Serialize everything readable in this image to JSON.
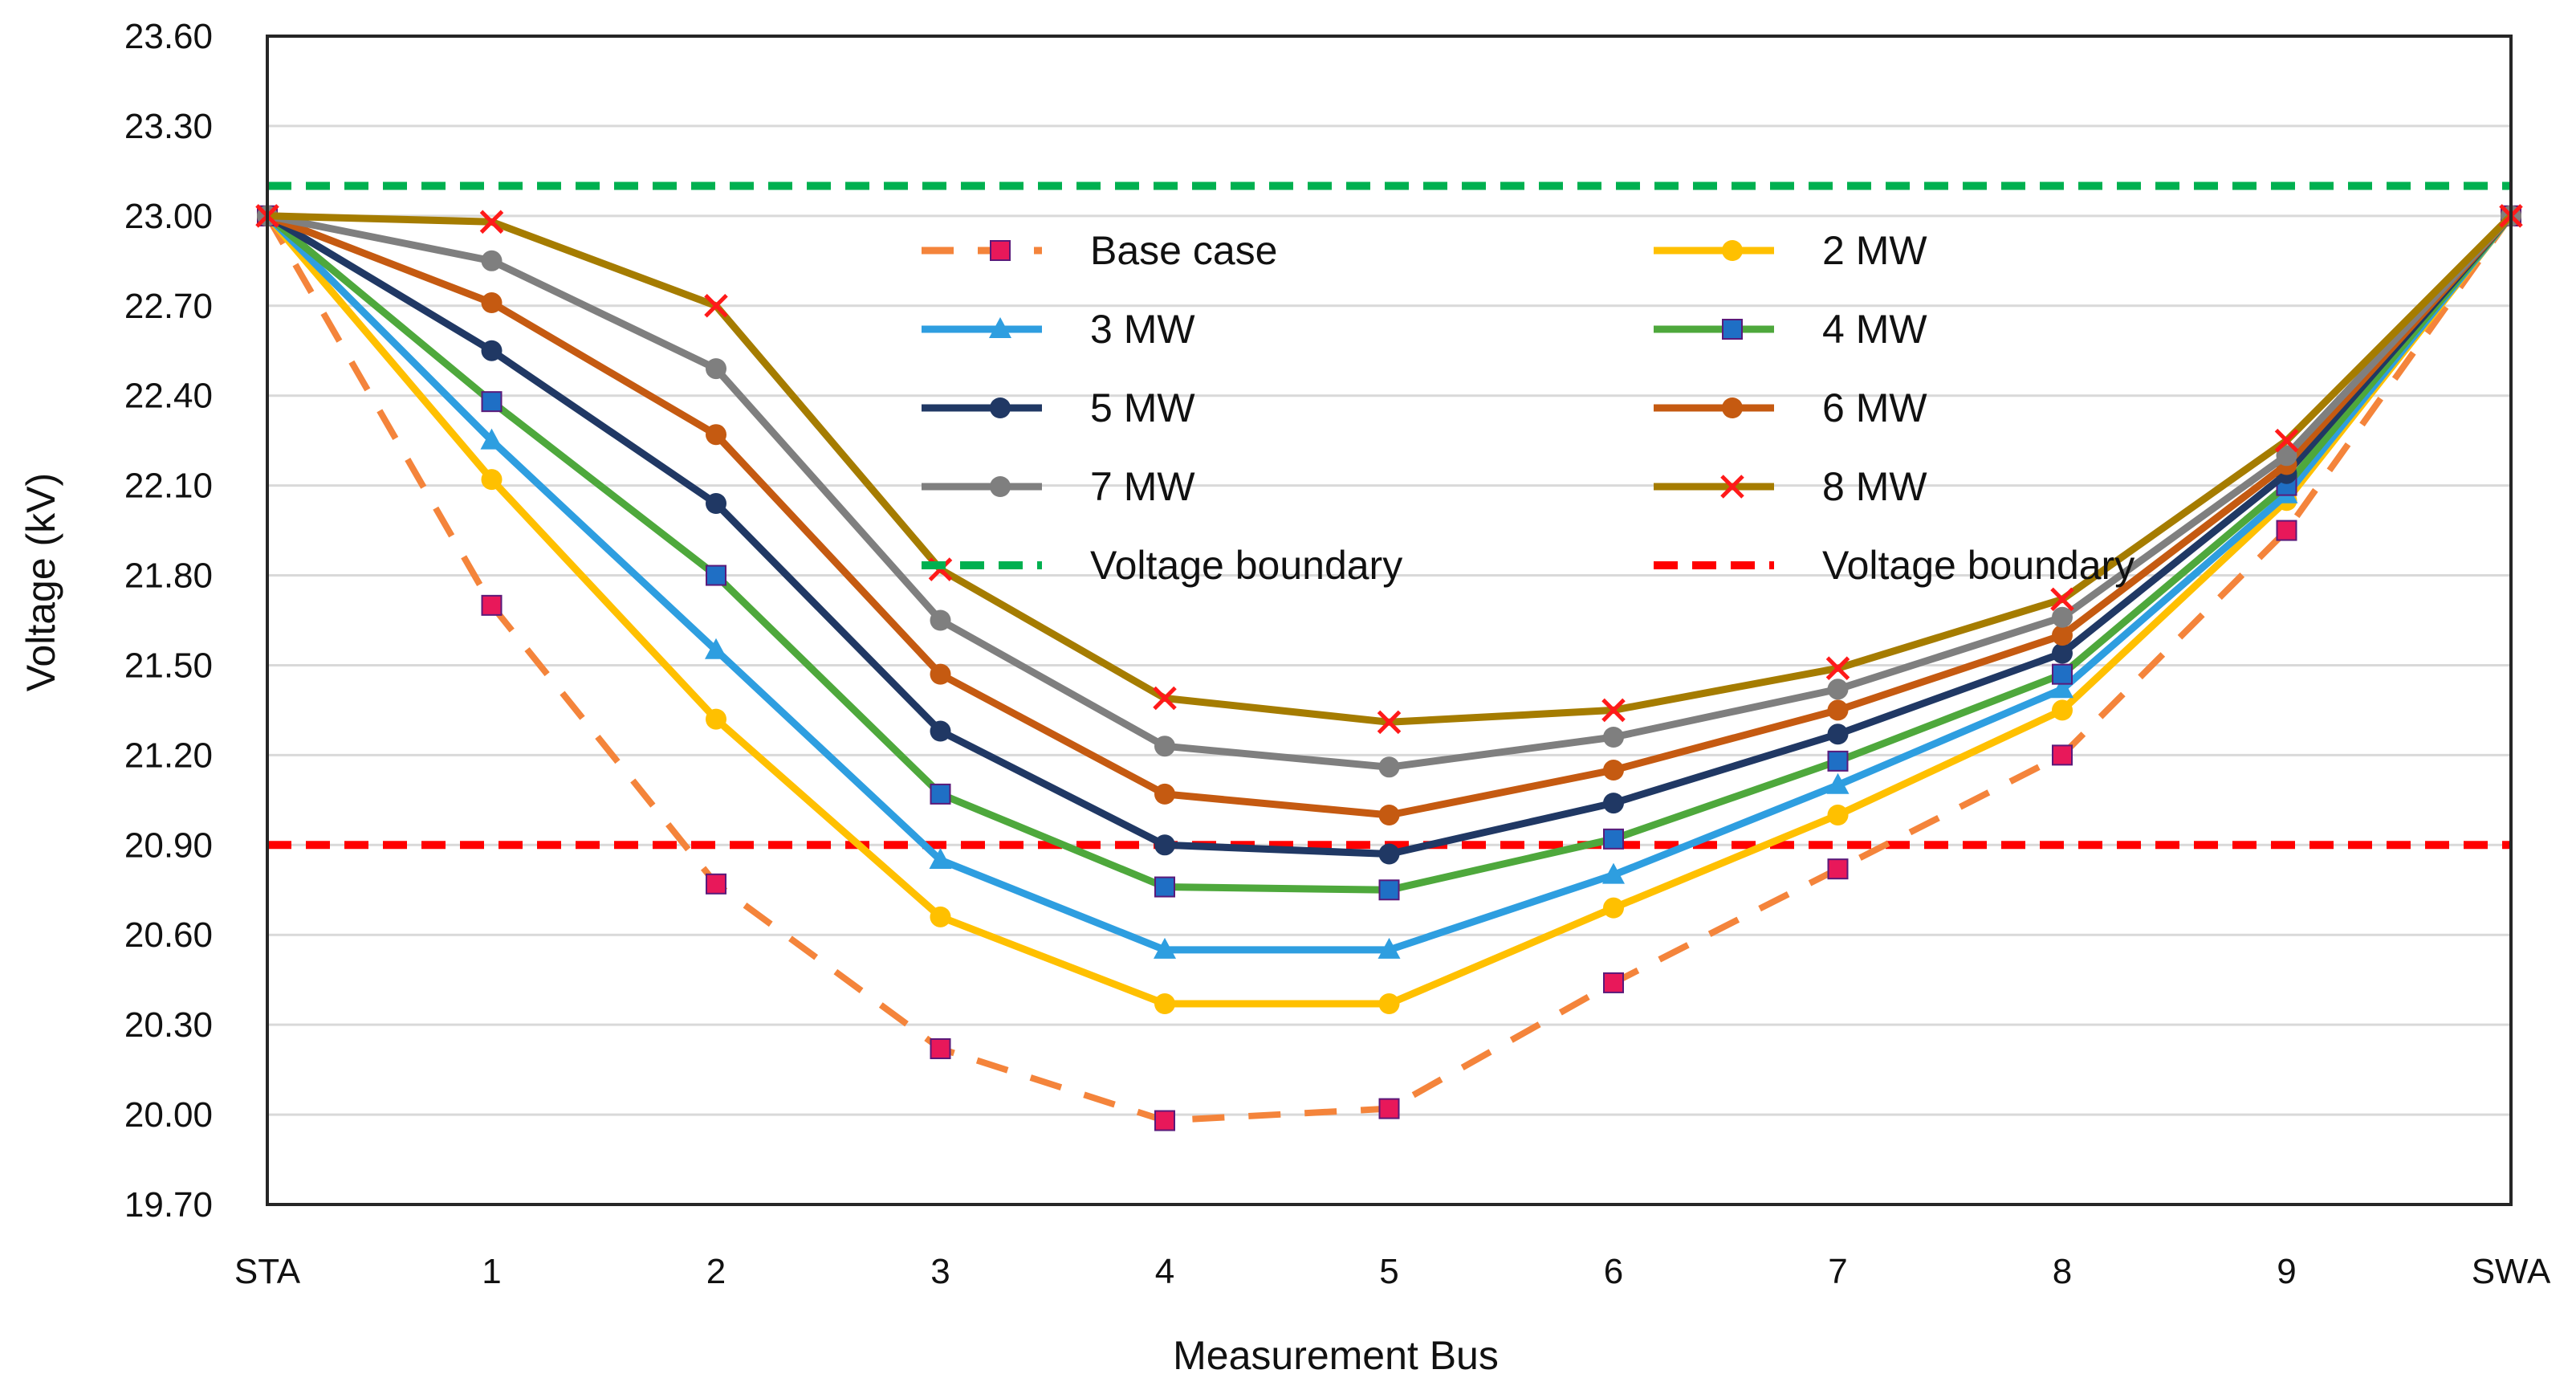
{
  "chart_data": {
    "type": "line",
    "title": "",
    "xlabel": "Measurement Bus",
    "ylabel": "Voltage (kV)",
    "categories": [
      "STA",
      "1",
      "2",
      "3",
      "4",
      "5",
      "6",
      "7",
      "8",
      "9",
      "SWA"
    ],
    "ylim": [
      19.7,
      23.6
    ],
    "yticks": [
      "19.70",
      "20.00",
      "20.30",
      "20.60",
      "20.90",
      "21.20",
      "21.50",
      "21.80",
      "22.10",
      "22.40",
      "22.70",
      "23.00",
      "23.30",
      "23.60"
    ],
    "grid": true,
    "series": [
      {
        "name": "Base case",
        "color": "#f4843b",
        "marker": "square",
        "marker_color": "#e8185a",
        "dashed": true,
        "values": [
          23.0,
          21.7,
          20.77,
          20.22,
          19.98,
          20.02,
          20.44,
          20.82,
          21.2,
          21.95,
          23.0
        ]
      },
      {
        "name": "2 MW",
        "color": "#ffc000",
        "marker": "circle",
        "marker_color": "#ffc000",
        "dashed": false,
        "values": [
          23.0,
          22.12,
          21.32,
          20.66,
          20.37,
          20.37,
          20.69,
          21.0,
          21.35,
          22.05,
          23.0
        ]
      },
      {
        "name": "3 MW",
        "color": "#2e9ee0",
        "marker": "triangle",
        "marker_color": "#2e9ee0",
        "dashed": false,
        "values": [
          23.0,
          22.25,
          21.55,
          20.85,
          20.55,
          20.55,
          20.8,
          21.1,
          21.42,
          22.07,
          23.0
        ]
      },
      {
        "name": "4 MW",
        "color": "#4ea83c",
        "marker": "square",
        "marker_color": "#1f6fc5",
        "dashed": false,
        "values": [
          23.0,
          22.38,
          21.8,
          21.07,
          20.76,
          20.75,
          20.92,
          21.18,
          21.47,
          22.1,
          23.0
        ]
      },
      {
        "name": "5 MW",
        "color": "#203864",
        "marker": "circle",
        "marker_color": "#203864",
        "dashed": false,
        "values": [
          23.0,
          22.55,
          22.04,
          21.28,
          20.9,
          20.87,
          21.04,
          21.27,
          21.54,
          22.14,
          23.0
        ]
      },
      {
        "name": "6 MW",
        "color": "#c55a11",
        "marker": "circle",
        "marker_color": "#c55a11",
        "dashed": false,
        "values": [
          23.0,
          22.71,
          22.27,
          21.47,
          21.07,
          21.0,
          21.15,
          21.35,
          21.6,
          22.17,
          23.0
        ]
      },
      {
        "name": "7 MW",
        "color": "#7f7f7f",
        "marker": "circle",
        "marker_color": "#7f7f7f",
        "dashed": false,
        "values": [
          23.0,
          22.85,
          22.49,
          21.65,
          21.23,
          21.16,
          21.26,
          21.42,
          21.66,
          22.2,
          23.0
        ]
      },
      {
        "name": "8 MW",
        "color": "#a57c00",
        "marker": "x",
        "marker_color": "#ff1a1a",
        "dashed": false,
        "values": [
          23.0,
          22.98,
          22.7,
          21.82,
          21.39,
          21.31,
          21.35,
          21.49,
          21.72,
          22.25,
          23.0
        ]
      }
    ],
    "reference_lines": [
      {
        "name": "Voltage boundary",
        "value": 23.1,
        "color": "#00b050"
      },
      {
        "name": "Voltage boundary",
        "value": 20.9,
        "color": "#ff0000"
      }
    ],
    "legend_position": "inside-top-center"
  }
}
